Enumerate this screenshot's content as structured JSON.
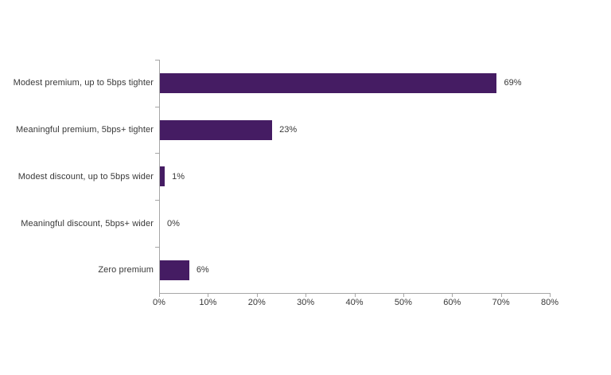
{
  "chart_data": {
    "type": "bar",
    "orientation": "horizontal",
    "title": "",
    "xlabel": "",
    "ylabel": "",
    "categories": [
      "Modest premium, up to 5bps tighter",
      "Meaningful premium, 5bps+ tighter",
      "Modest discount, up to 5bps wider",
      "Meaningful discount, 5bps+ wider",
      "Zero premium"
    ],
    "values": [
      69,
      23,
      1,
      0,
      6
    ],
    "value_labels": [
      "69%",
      "23%",
      "1%",
      "0%",
      "6%"
    ],
    "xlim": [
      0,
      80
    ],
    "x_tick_step": 10,
    "x_tick_labels": [
      "0%",
      "10%",
      "20%",
      "30%",
      "40%",
      "50%",
      "60%",
      "70%",
      "80%"
    ],
    "grid": false,
    "legend": false,
    "bar_color": "#451c63",
    "axis_color": "#a6a6a6",
    "text_color": "#383838"
  }
}
